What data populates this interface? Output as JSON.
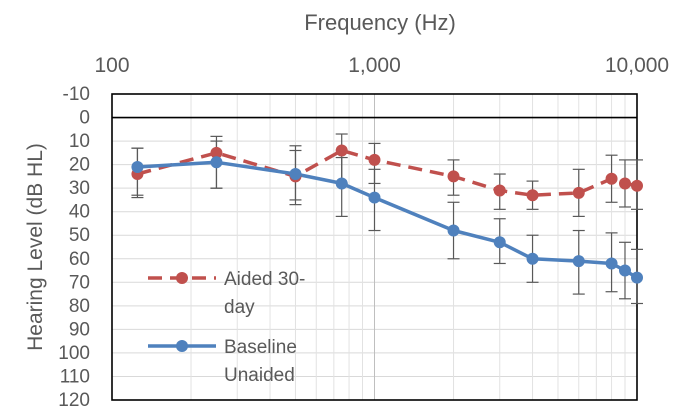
{
  "chart_data": {
    "type": "line",
    "title": "",
    "xlabel": "Frequency (Hz)",
    "ylabel": "Hearing Level (dB HL)",
    "x_scale": "log",
    "x_axis_position": "top",
    "y_inverted": true,
    "xlim": [
      100,
      10000
    ],
    "ylim": [
      -10,
      120
    ],
    "x_tick_values": [
      100,
      1000,
      10000
    ],
    "x_tick_labels": [
      "100",
      "1,000",
      "10,000"
    ],
    "y_tick_labels": [
      "-10",
      "0",
      "10",
      "20",
      "30",
      "40",
      "50",
      "60",
      "70",
      "80",
      "90",
      "100",
      "110",
      "120"
    ],
    "grid": true,
    "legend_position": "left",
    "series": [
      {
        "name": "Aided 30-day",
        "legend_lines": [
          "Aided 30-",
          "day"
        ],
        "color": "#C0504D",
        "line_style": "dashed",
        "marker": "circle",
        "x": [
          125,
          250,
          500,
          750,
          1000,
          2000,
          3000,
          4000,
          6000,
          8000,
          9000,
          10000
        ],
        "y": [
          24,
          15,
          25,
          14,
          18,
          25,
          31,
          33,
          32,
          26,
          28,
          29
        ],
        "error_low": [
          34,
          30,
          37,
          28,
          28,
          33,
          39,
          39,
          42,
          36,
          38,
          39
        ],
        "error_high": [
          13,
          8,
          12,
          7,
          11,
          18,
          24,
          27,
          22,
          16,
          18,
          18
        ]
      },
      {
        "name": "Baseline Unaided",
        "legend_lines": [
          "Baseline",
          "Unaided"
        ],
        "color": "#4F81BD",
        "line_style": "solid",
        "marker": "circle",
        "x": [
          125,
          250,
          500,
          750,
          1000,
          2000,
          3000,
          4000,
          6000,
          8000,
          9000,
          10000
        ],
        "y": [
          21,
          19,
          24,
          28,
          34,
          48,
          53,
          60,
          61,
          62,
          65,
          68
        ],
        "error_low": [
          33,
          30,
          35,
          42,
          48,
          60,
          62,
          70,
          75,
          74,
          77,
          79
        ],
        "error_high": [
          13,
          10,
          14,
          17,
          22,
          36,
          43,
          50,
          48,
          49,
          53,
          56
        ]
      }
    ]
  }
}
